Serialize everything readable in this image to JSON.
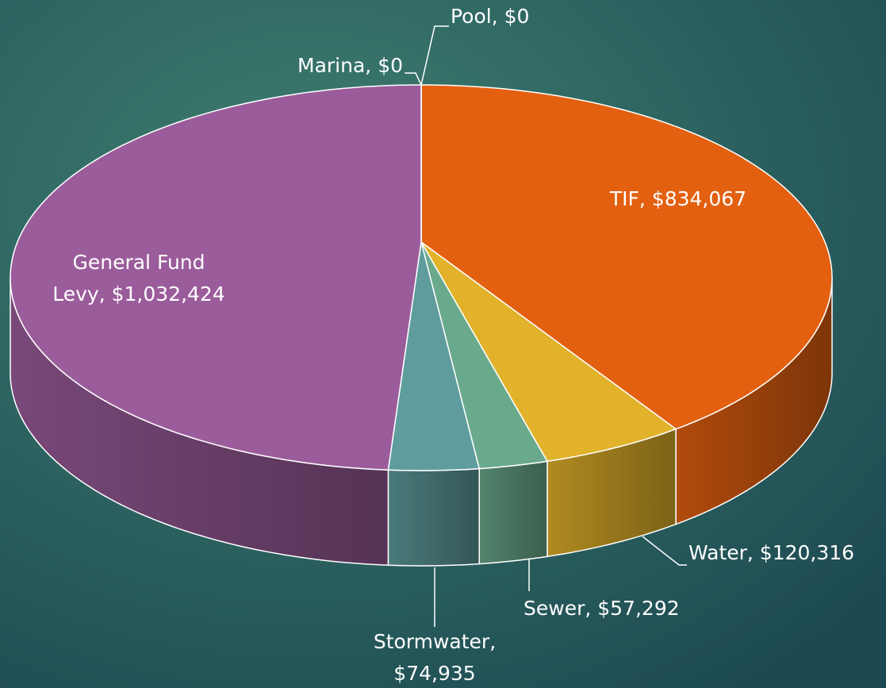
{
  "chart_data": {
    "type": "pie3d",
    "values": [
      0,
      834067,
      120316,
      57292,
      74935,
      1032424,
      0
    ],
    "value_labels": [
      "Pool, $0",
      "TIF, $834,067",
      "Water, $120,316",
      "Sewer, $57,292",
      "Stormwater,\n$74,935",
      "General Fund\nLevy, $1,032,424",
      "Marina, $0"
    ],
    "colors": [
      "#4f81bd",
      "#e36010",
      "#e1b22a",
      "#6aaa8c",
      "#5f9c9e",
      "#9b5c9b",
      "#8fb0c8"
    ]
  }
}
